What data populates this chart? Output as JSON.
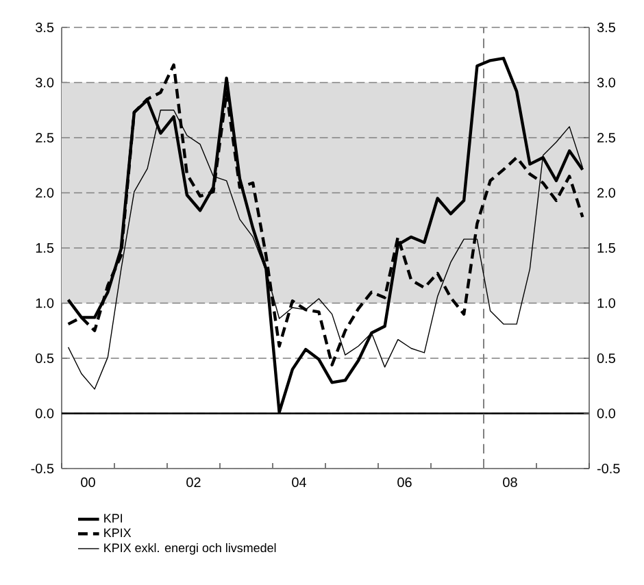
{
  "chart_data": {
    "type": "line",
    "x": [
      -0.375,
      -0.125,
      0.125,
      0.375,
      0.625,
      0.875,
      1.125,
      1.375,
      1.625,
      1.875,
      2.125,
      2.375,
      2.625,
      2.875,
      3.125,
      3.375,
      3.625,
      3.875,
      4.125,
      4.375,
      4.625,
      4.875,
      5.125,
      5.375,
      5.625,
      5.875,
      6.125,
      6.375,
      6.625,
      6.875,
      7.125,
      7.375,
      7.625,
      7.875,
      8.125,
      8.375,
      8.625,
      8.875,
      9.125,
      9.375
    ],
    "series": [
      {
        "name": "KPI",
        "color": "#000000",
        "line_style": "solid",
        "values": [
          1.03,
          0.87,
          0.87,
          1.1,
          1.49,
          2.73,
          2.84,
          2.54,
          2.69,
          1.98,
          1.84,
          2.05,
          3.04,
          2.13,
          1.68,
          1.31,
          0.01,
          0.4,
          0.58,
          0.49,
          0.28,
          0.3,
          0.48,
          0.73,
          0.79,
          1.53,
          1.6,
          1.55,
          1.95,
          1.81,
          1.93,
          3.15,
          3.2,
          3.22,
          2.92,
          2.26,
          2.32,
          2.11,
          2.38,
          2.21
        ]
      },
      {
        "name": "KPIX",
        "color": "#000000",
        "line_style": "dashed",
        "values": [
          0.81,
          0.87,
          0.75,
          1.16,
          1.43,
          2.73,
          2.85,
          2.91,
          3.16,
          2.17,
          1.97,
          2.01,
          2.91,
          2.05,
          2.09,
          1.43,
          0.61,
          1.02,
          0.94,
          0.92,
          0.44,
          0.75,
          0.95,
          1.1,
          1.05,
          1.6,
          1.21,
          1.14,
          1.27,
          1.05,
          0.9,
          1.72,
          2.11,
          2.21,
          2.32,
          2.17,
          2.09,
          1.93,
          2.15,
          1.78
        ]
      },
      {
        "name": "KPIX exkl. energi och livsmedel",
        "color": "#000000",
        "line_style": "solid",
        "values": [
          0.6,
          0.36,
          0.22,
          0.51,
          1.3,
          2.01,
          2.22,
          2.75,
          2.75,
          2.52,
          2.44,
          2.15,
          2.11,
          1.76,
          1.6,
          1.29,
          0.86,
          0.96,
          0.94,
          1.04,
          0.9,
          0.53,
          0.61,
          0.73,
          0.42,
          0.67,
          0.59,
          0.55,
          1.06,
          1.37,
          1.58,
          1.58,
          0.93,
          0.81,
          0.81,
          1.31,
          2.34,
          2.46,
          2.6,
          2.23
        ]
      }
    ],
    "xlim": [
      -0.5,
      9.5
    ],
    "xticks": [
      {
        "value": -0.5,
        "label": null
      },
      {
        "value": 0,
        "label": "00"
      },
      {
        "value": 0.5,
        "label": null
      },
      {
        "value": 1.5,
        "label": null
      },
      {
        "value": 2,
        "label": "02"
      },
      {
        "value": 2.5,
        "label": null
      },
      {
        "value": 3.5,
        "label": null
      },
      {
        "value": 4,
        "label": "04"
      },
      {
        "value": 4.5,
        "label": null
      },
      {
        "value": 5.5,
        "label": null
      },
      {
        "value": 6,
        "label": "06"
      },
      {
        "value": 6.5,
        "label": null
      },
      {
        "value": 7.5,
        "label": null
      },
      {
        "value": 8,
        "label": "08"
      },
      {
        "value": 8.5,
        "label": null
      },
      {
        "value": 9.5,
        "label": null
      }
    ],
    "ylim": [
      -0.5,
      3.5
    ],
    "yticks": [
      {
        "value": -0.5,
        "label": "-0.5"
      },
      {
        "value": 0,
        "label": "0.0"
      },
      {
        "value": 0.5,
        "label": "0.5"
      },
      {
        "value": 1,
        "label": "1.0"
      },
      {
        "value": 1.5,
        "label": "1.5"
      },
      {
        "value": 2,
        "label": "2.0"
      },
      {
        "value": 2.5,
        "label": "2.5"
      },
      {
        "value": 3,
        "label": "3.0"
      },
      {
        "value": 3.5,
        "label": "3.5"
      }
    ],
    "y2lim": [
      -0.5,
      3.5
    ],
    "y2ticks": [
      {
        "value": -0.5,
        "label": "-0.5"
      },
      {
        "value": 0,
        "label": "0.0"
      },
      {
        "value": 0.5,
        "label": "0.5"
      },
      {
        "value": 1,
        "label": "1.0"
      },
      {
        "value": 1.5,
        "label": "1.5"
      },
      {
        "value": 2,
        "label": "2.0"
      },
      {
        "value": 2.5,
        "label": "2.5"
      },
      {
        "value": 3,
        "label": "3.0"
      },
      {
        "value": 3.5,
        "label": "3.5"
      }
    ],
    "bands": [
      {
        "axis": "y",
        "from": 1,
        "to": 3,
        "color": "#dcdcdc"
      }
    ],
    "ref_lines": [
      {
        "axis": "y",
        "value": 0,
        "color": "#000000",
        "line_style": "solid"
      },
      {
        "axis": "x",
        "value": 7.5,
        "color": "#808080",
        "line_style": "dashed"
      }
    ],
    "grid": "y",
    "legend": "bottom"
  }
}
